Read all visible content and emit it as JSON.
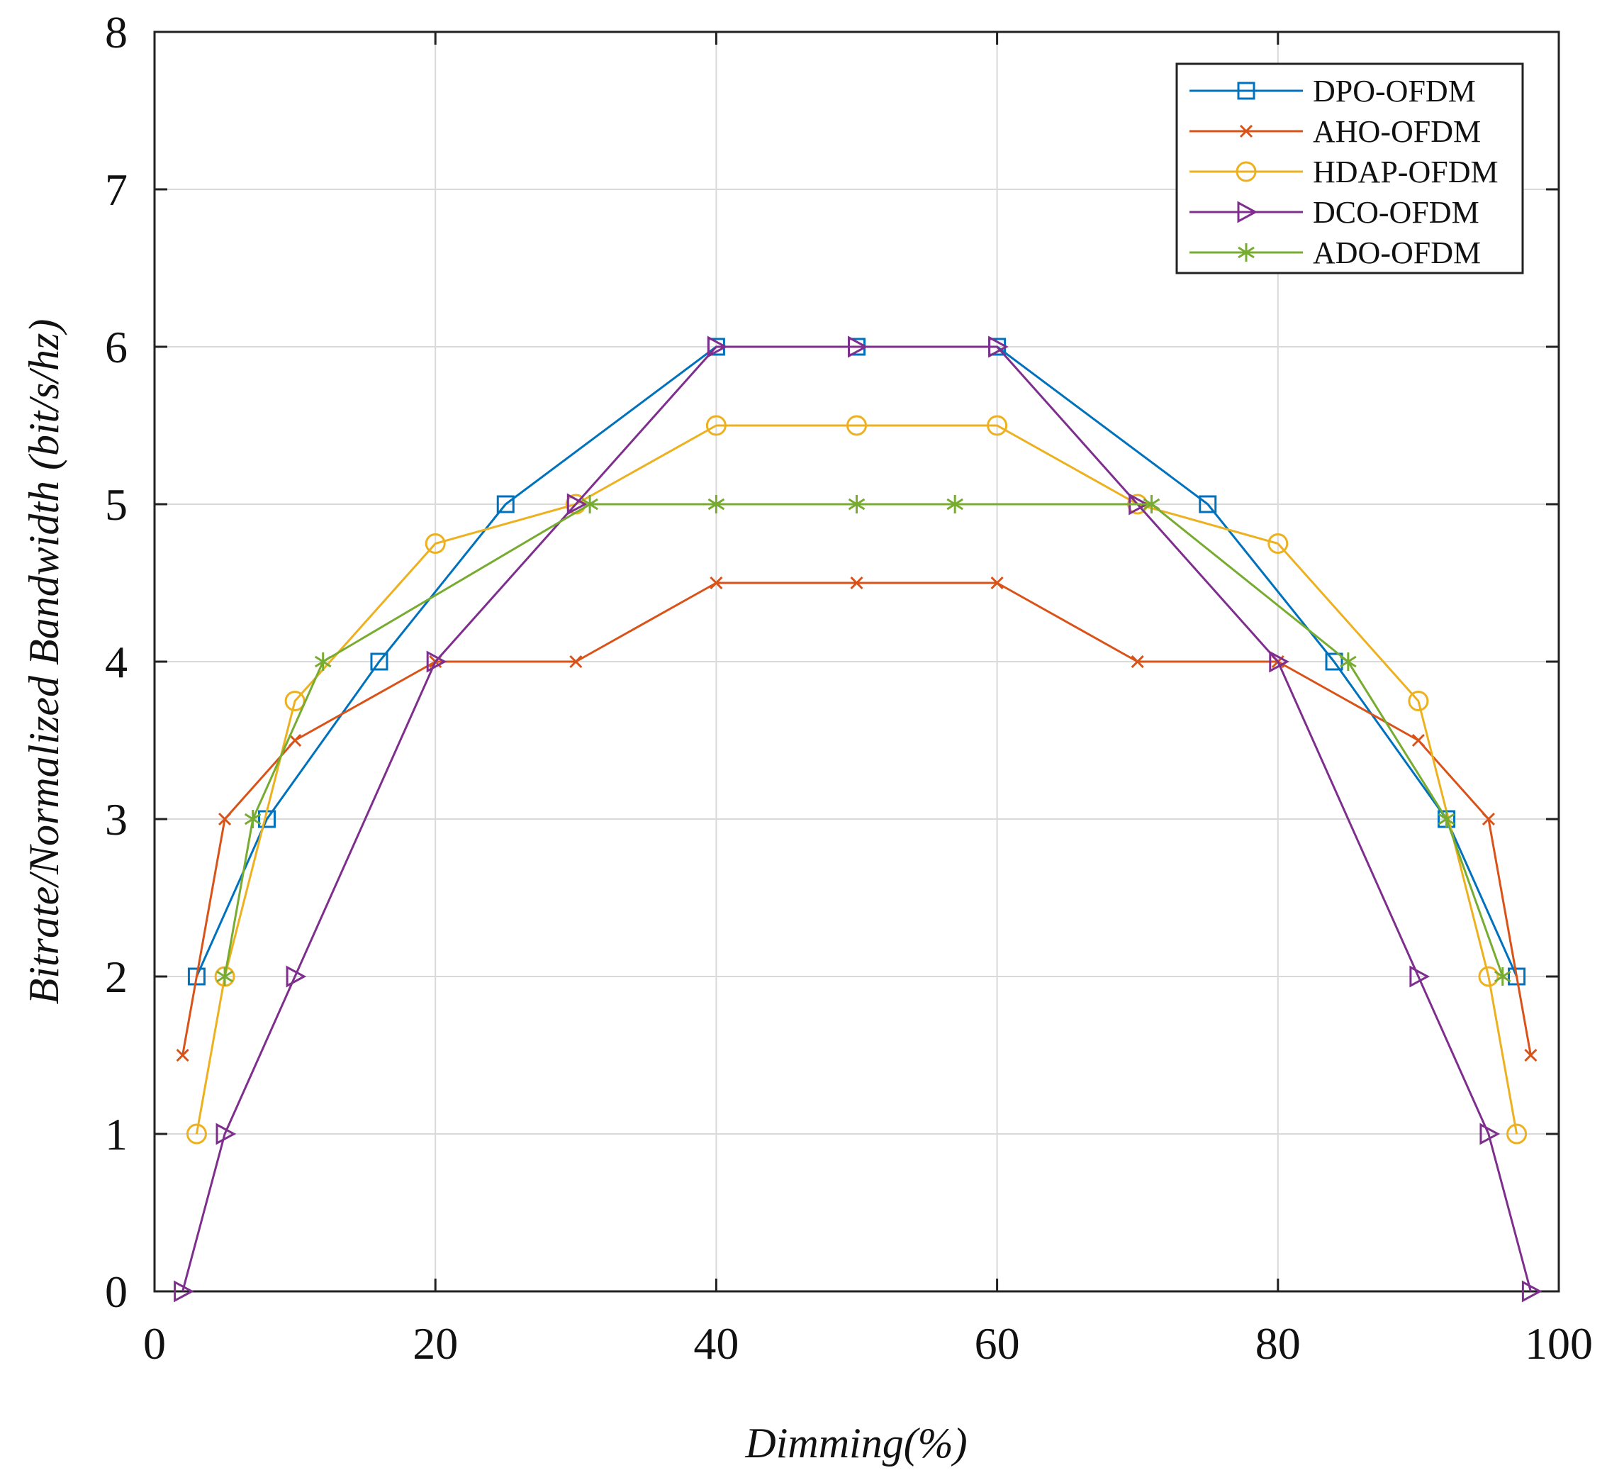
{
  "chart_data": {
    "type": "line",
    "title": "",
    "xlabel": "Dimming(%)",
    "ylabel": "Bitrate/Normalized Bandwidth (bit/s/hz)",
    "xlim": [
      0,
      100
    ],
    "ylim": [
      0,
      8
    ],
    "xticks": [
      0,
      20,
      40,
      60,
      80,
      100
    ],
    "yticks": [
      0,
      1,
      2,
      3,
      4,
      5,
      6,
      7,
      8
    ],
    "grid": true,
    "legend_position": "top-right",
    "series": [
      {
        "name": "DPO-OFDM",
        "color": "#0072BD",
        "marker": "square",
        "points": [
          [
            3,
            2
          ],
          [
            8,
            3
          ],
          [
            16,
            4
          ],
          [
            25,
            5
          ],
          [
            40,
            6
          ],
          [
            50,
            6
          ],
          [
            60,
            6
          ],
          [
            75,
            5
          ],
          [
            84,
            4
          ],
          [
            92,
            3
          ],
          [
            97,
            2
          ]
        ]
      },
      {
        "name": "AHO-OFDM",
        "color": "#D95319",
        "marker": "x",
        "points": [
          [
            2,
            1.5
          ],
          [
            5,
            3
          ],
          [
            10,
            3.5
          ],
          [
            20,
            4
          ],
          [
            30,
            4
          ],
          [
            40,
            4.5
          ],
          [
            50,
            4.5
          ],
          [
            60,
            4.5
          ],
          [
            70,
            4
          ],
          [
            80,
            4
          ],
          [
            90,
            3.5
          ],
          [
            95,
            3
          ],
          [
            98,
            1.5
          ]
        ]
      },
      {
        "name": "HDAP-OFDM",
        "color": "#EDB120",
        "marker": "circle",
        "points": [
          [
            3,
            1
          ],
          [
            5,
            2
          ],
          [
            10,
            3.75
          ],
          [
            20,
            4.75
          ],
          [
            30,
            5
          ],
          [
            40,
            5.5
          ],
          [
            50,
            5.5
          ],
          [
            60,
            5.5
          ],
          [
            70,
            5
          ],
          [
            80,
            4.75
          ],
          [
            90,
            3.75
          ],
          [
            95,
            2
          ],
          [
            97,
            1
          ]
        ]
      },
      {
        "name": "DCO-OFDM",
        "color": "#7E2F8E",
        "marker": "triangle-right",
        "points": [
          [
            2,
            0
          ],
          [
            5,
            1
          ],
          [
            10,
            2
          ],
          [
            20,
            4
          ],
          [
            30,
            5
          ],
          [
            40,
            6
          ],
          [
            50,
            6
          ],
          [
            60,
            6
          ],
          [
            70,
            5
          ],
          [
            80,
            4
          ],
          [
            90,
            2
          ],
          [
            95,
            1
          ],
          [
            98,
            0
          ]
        ]
      },
      {
        "name": "ADO-OFDM",
        "color": "#77AC30",
        "marker": "asterisk",
        "points": [
          [
            5,
            2
          ],
          [
            7,
            3
          ],
          [
            12,
            4
          ],
          [
            31,
            5
          ],
          [
            40,
            5
          ],
          [
            50,
            5
          ],
          [
            57,
            5
          ],
          [
            71,
            5
          ],
          [
            85,
            4
          ],
          [
            92,
            3
          ],
          [
            96,
            2
          ]
        ]
      }
    ]
  }
}
